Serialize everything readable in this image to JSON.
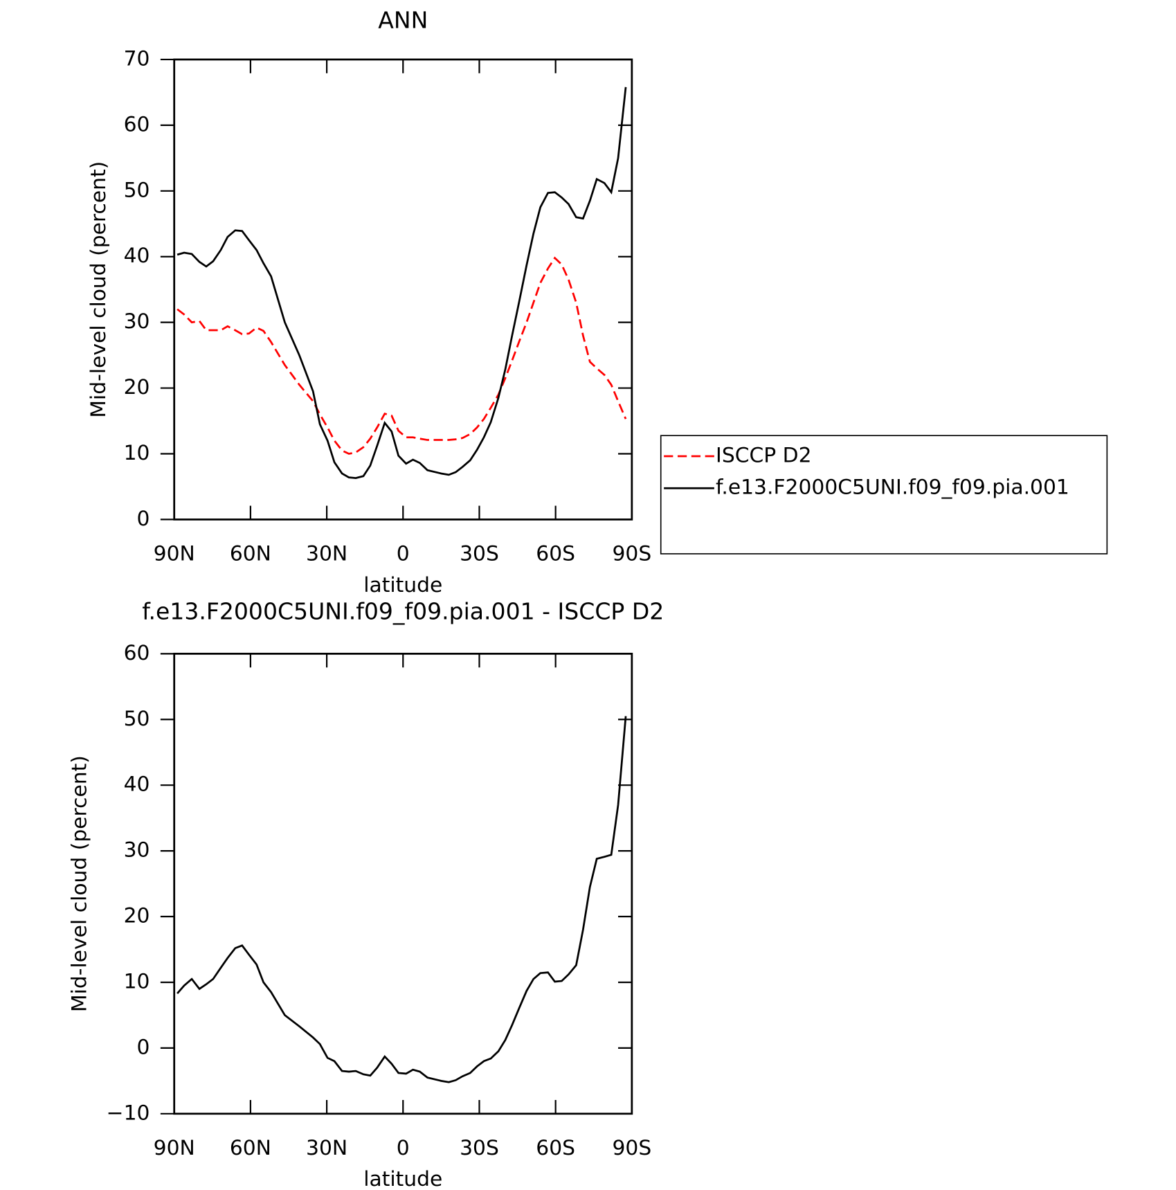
{
  "chart_data": [
    {
      "type": "line",
      "title": "ANN",
      "x_label": "latitude",
      "y_label": "Mid-level cloud (percent)",
      "xlim": [
        90,
        -90
      ],
      "xticks": [
        {
          "value": 90,
          "label": "90N"
        },
        {
          "value": 60,
          "label": "60N"
        },
        {
          "value": 30,
          "label": "30N"
        },
        0,
        {
          "value": -30,
          "label": "30S"
        },
        {
          "value": -60,
          "label": "60S"
        },
        {
          "value": -90,
          "label": "90S"
        }
      ],
      "ylim": [
        0,
        70
      ],
      "yticks": [
        0,
        10,
        20,
        30,
        40,
        50,
        60,
        70
      ],
      "legend": "right",
      "x": [
        88.8,
        86.1,
        83.1,
        80.1,
        77.4,
        74.7,
        71.7,
        69.0,
        66.0,
        63.3,
        60.6,
        57.6,
        54.9,
        51.9,
        46.5,
        40.8,
        35.4,
        32.7,
        29.7,
        27.0,
        24.0,
        21.3,
        18.6,
        15.6,
        12.9,
        10.2,
        7.2,
        4.5,
        1.8,
        -1.2,
        -3.9,
        -6.6,
        -9.6,
        -15,
        -18,
        -20.7,
        -23.4,
        -26.4,
        -29.1,
        -31.8,
        -34.5,
        -37.5,
        -40.2,
        -42.9,
        -45.6,
        -48.6,
        -51.3,
        -54,
        -57,
        -59.7,
        -62.4,
        -65.1,
        -68.1,
        -70.8,
        -73.5,
        -76.2,
        -79.2,
        -81.9,
        -84.6,
        -87.6
      ],
      "series": [
        {
          "name": "ISCCP D2",
          "color": "#ff0000",
          "dash": true,
          "values": [
            32.0,
            31.2,
            30.0,
            30.2,
            28.8,
            28.8,
            28.8,
            29.4,
            28.8,
            28.2,
            28.3,
            29.2,
            28.7,
            27.0,
            23.5,
            20.5,
            18.0,
            16.0,
            14.0,
            12.0,
            10.5,
            10.0,
            10.2,
            11.0,
            12.3,
            14.0,
            16.1,
            15.8,
            13.5,
            12.5,
            12.5,
            12.3,
            12.1,
            12.1,
            12.1,
            12.2,
            12.4,
            13.0,
            14.0,
            15.3,
            17.0,
            19.0,
            21.5,
            24.2,
            27.0,
            30.0,
            33.0,
            36.0,
            38.2,
            39.8,
            38.8,
            36.5,
            33.0,
            28.0,
            24.0,
            23.0,
            22.0,
            20.5,
            18.0,
            15.3
          ]
        },
        {
          "name": "f.e13.F2000C5UNI.f09_f09.pia.001",
          "color": "#000000",
          "dash": false,
          "values": [
            40.3,
            40.6,
            40.4,
            39.2,
            38.5,
            39.3,
            41.0,
            43.0,
            44.0,
            43.9,
            42.5,
            41.0,
            39.0,
            37.0,
            30.0,
            25.0,
            19.5,
            14.5,
            12.0,
            8.7,
            7.0,
            6.4,
            6.3,
            6.6,
            8.2,
            11.2,
            14.7,
            13.4,
            9.7,
            8.5,
            9.1,
            8.6,
            7.5,
            7.0,
            6.8,
            7.2,
            8.0,
            9.0,
            10.6,
            12.5,
            14.8,
            18.5,
            22.8,
            28.0,
            33.0,
            38.7,
            43.5,
            47.5,
            49.7,
            49.8,
            49.0,
            48.0,
            46.0,
            45.8,
            48.5,
            51.8,
            51.2,
            49.8,
            55.0,
            65.8
          ]
        }
      ]
    },
    {
      "type": "line",
      "title": "f.e13.F2000C5UNI.f09_f09.pia.001 - ISCCP D2",
      "x_label": "latitude",
      "y_label": "Mid-level cloud (percent)",
      "xlim": [
        90,
        -90
      ],
      "xticks": [
        {
          "value": 90,
          "label": "90N"
        },
        {
          "value": 60,
          "label": "60N"
        },
        {
          "value": 30,
          "label": "30N"
        },
        0,
        {
          "value": -30,
          "label": "30S"
        },
        {
          "value": -60,
          "label": "60S"
        },
        {
          "value": -90,
          "label": "90S"
        }
      ],
      "ylim": [
        -10,
        60
      ],
      "yticks": [
        {
          "value": -10,
          "label": "−10"
        },
        0,
        10,
        20,
        30,
        40,
        50,
        60
      ],
      "x": [
        88.8,
        86.1,
        83.1,
        80.1,
        77.4,
        74.7,
        71.7,
        69.0,
        66.0,
        63.3,
        60.6,
        57.6,
        54.9,
        51.9,
        46.5,
        40.8,
        35.4,
        32.7,
        29.7,
        27.0,
        24.0,
        21.3,
        18.6,
        15.6,
        12.9,
        10.2,
        7.2,
        4.5,
        1.8,
        -1.2,
        -3.9,
        -6.6,
        -9.6,
        -15,
        -18,
        -20.7,
        -23.4,
        -26.4,
        -29.1,
        -31.8,
        -34.5,
        -37.5,
        -40.2,
        -42.9,
        -45.6,
        -48.6,
        -51.3,
        -54,
        -57,
        -59.7,
        -62.4,
        -65.1,
        -68.1,
        -70.8,
        -73.5,
        -76.2,
        -79.2,
        -81.9,
        -84.6,
        -87.6
      ],
      "series": [
        {
          "color": "#000000",
          "dash": false,
          "values": [
            8.3,
            9.5,
            10.5,
            9.0,
            9.7,
            10.5,
            12.2,
            13.7,
            15.2,
            15.6,
            14.2,
            12.7,
            10.0,
            8.5,
            5.0,
            3.3,
            1.6,
            0.6,
            -1.5,
            -2.0,
            -3.5,
            -3.6,
            -3.5,
            -4.0,
            -4.2,
            -3.0,
            -1.3,
            -2.4,
            -3.8,
            -3.9,
            -3.3,
            -3.6,
            -4.5,
            -5.0,
            -5.2,
            -4.9,
            -4.3,
            -3.8,
            -2.8,
            -2.0,
            -1.6,
            -0.5,
            1.2,
            3.5,
            6.0,
            8.7,
            10.5,
            11.4,
            11.5,
            10.1,
            10.2,
            11.2,
            12.6,
            18.0,
            24.5,
            28.8,
            29.1,
            29.4,
            37.0,
            50.5
          ]
        }
      ]
    }
  ]
}
